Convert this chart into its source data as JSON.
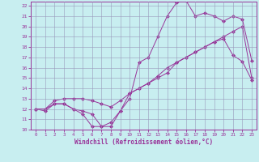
{
  "xlabel": "Windchill (Refroidissement éolien,°C)",
  "bg_color": "#c8eef0",
  "grid_color": "#9999bb",
  "line_color": "#993399",
  "xlim": [
    -0.5,
    23.5
  ],
  "ylim": [
    10,
    22.4
  ],
  "xticks": [
    0,
    1,
    2,
    3,
    4,
    5,
    6,
    7,
    8,
    9,
    10,
    11,
    12,
    13,
    14,
    15,
    16,
    17,
    18,
    19,
    20,
    21,
    22,
    23
  ],
  "yticks": [
    10,
    11,
    12,
    13,
    14,
    15,
    16,
    17,
    18,
    19,
    20,
    21,
    22
  ],
  "line1_x": [
    0,
    1,
    2,
    3,
    4,
    5,
    6,
    7,
    8,
    9,
    10,
    11,
    12,
    13,
    14,
    15,
    16,
    17,
    18,
    19,
    20,
    21,
    22,
    23
  ],
  "line1_y": [
    12.0,
    12.0,
    12.5,
    12.5,
    12.0,
    11.5,
    10.3,
    10.3,
    10.7,
    11.8,
    13.5,
    14.0,
    14.5,
    15.0,
    15.5,
    16.5,
    17.0,
    17.5,
    18.0,
    18.5,
    18.8,
    17.2,
    16.6,
    14.8
  ],
  "line2_x": [
    0,
    1,
    2,
    3,
    4,
    5,
    6,
    7,
    8,
    9,
    10,
    11,
    12,
    13,
    14,
    15,
    16,
    17,
    18,
    19,
    20,
    21,
    22,
    23
  ],
  "line2_y": [
    12.0,
    12.0,
    12.8,
    13.0,
    13.0,
    13.0,
    12.8,
    12.5,
    12.2,
    12.8,
    13.5,
    14.0,
    14.5,
    15.2,
    16.0,
    16.5,
    17.0,
    17.5,
    18.0,
    18.5,
    19.0,
    19.5,
    20.0,
    15.0
  ],
  "line3_x": [
    0,
    1,
    2,
    3,
    4,
    5,
    6,
    7,
    8,
    9,
    10,
    11,
    12,
    13,
    14,
    15,
    16,
    17,
    18,
    19,
    20,
    21,
    22,
    23
  ],
  "line3_y": [
    12.0,
    11.8,
    12.5,
    12.5,
    12.0,
    11.8,
    11.5,
    10.3,
    10.3,
    11.8,
    13.0,
    16.5,
    17.0,
    19.0,
    21.0,
    22.3,
    22.5,
    21.0,
    21.3,
    21.0,
    20.5,
    21.0,
    20.7,
    16.7
  ]
}
